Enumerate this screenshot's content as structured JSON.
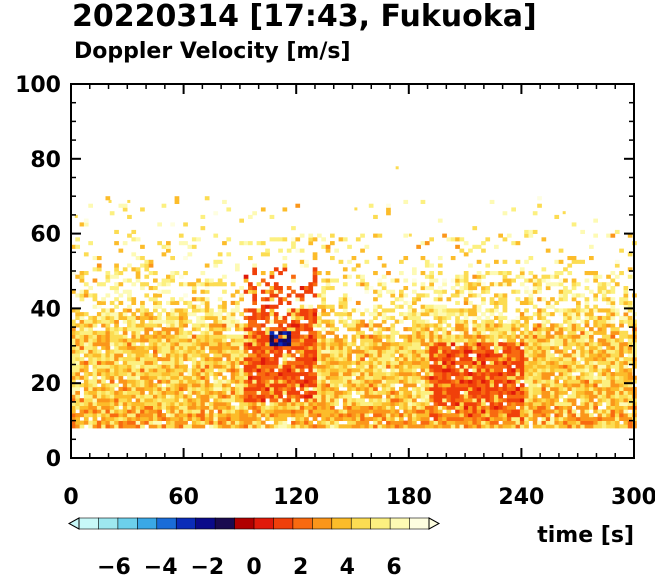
{
  "title": "20220314 [17:43, Fukuoka]",
  "subtitle": "Doppler Velocity [m/s]",
  "chart_data": {
    "type": "heatmap",
    "title": "20220314 [17:43, Fukuoka]",
    "subtitle": "Doppler Velocity [m/s]",
    "xlabel": "time [s]",
    "ylabel": "",
    "xlim": [
      0,
      300
    ],
    "ylim": [
      0,
      100
    ],
    "x_ticks": [
      0,
      60,
      120,
      180,
      240,
      300
    ],
    "y_ticks": [
      0,
      20,
      40,
      60,
      80,
      100
    ],
    "colorbar": {
      "ticks": [
        -6,
        -4,
        -2,
        0,
        2,
        4,
        6
      ],
      "range": [
        -7.5,
        7.5
      ],
      "colors": [
        "#c8f8f8",
        "#9ee8f0",
        "#6cd0ec",
        "#3aa8e6",
        "#1a6cd8",
        "#0a2cb8",
        "#0a0a8a",
        "#1a0a50",
        "#b00000",
        "#e01a0a",
        "#f0400a",
        "#f86a10",
        "#fb961a",
        "#fcbc2a",
        "#fcdc52",
        "#fcf080",
        "#fdfab4",
        "#fefee0"
      ]
    },
    "data_region": {
      "y_min_echo": 8,
      "dense_band_top": 40,
      "sparse_top": 65,
      "strong_features": [
        {
          "time_range": [
            90,
            130
          ],
          "height_range": [
            15,
            50
          ],
          "velocity": 1.5
        },
        {
          "time_range": [
            190,
            240
          ],
          "height_range": [
            10,
            30
          ],
          "velocity": 1.5
        },
        {
          "time_range": [
            105,
            115
          ],
          "height_range": [
            30,
            33
          ],
          "velocity": -2
        }
      ]
    }
  }
}
